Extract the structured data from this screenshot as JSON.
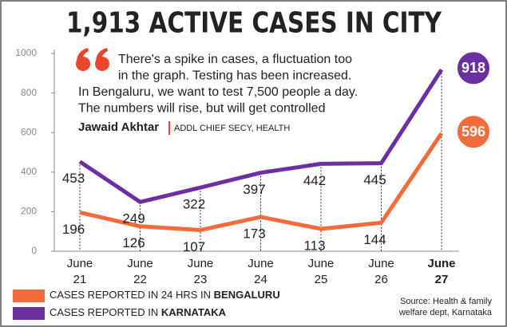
{
  "chart_data": {
    "type": "line",
    "title": "1,913 ACTIVE CASES IN CITY",
    "quote": [
      "There's a spike in cases, a fluctuation too",
      "in the graph. Testing has been increased.",
      "In Bengaluru, we want to test 7,500 people a day.",
      "The numbers will rise, but will get controlled"
    ],
    "quote_author": "Jawaid Akhtar",
    "quote_author_title": "ADDL CHIEF SECY, HEALTH",
    "categories": [
      "June 21",
      "June 22",
      "June 23",
      "June 24",
      "June 25",
      "June 26",
      "June 27"
    ],
    "series": [
      {
        "name": "CASES REPORTED IN 24 HRS IN BENGALURU",
        "color": "#f26b3a",
        "values": [
          196,
          126,
          107,
          173,
          113,
          144,
          596
        ]
      },
      {
        "name": "CASES REPORTED IN KARNATAKA",
        "color": "#6b2fa0",
        "values": [
          453,
          249,
          322,
          397,
          442,
          445,
          918
        ]
      }
    ],
    "ylim": [
      0,
      1000
    ],
    "yticks": [
      0,
      200,
      400,
      600,
      800,
      1000
    ],
    "source": [
      "Source: Health & family",
      "welfare dept, Karnataka"
    ]
  }
}
